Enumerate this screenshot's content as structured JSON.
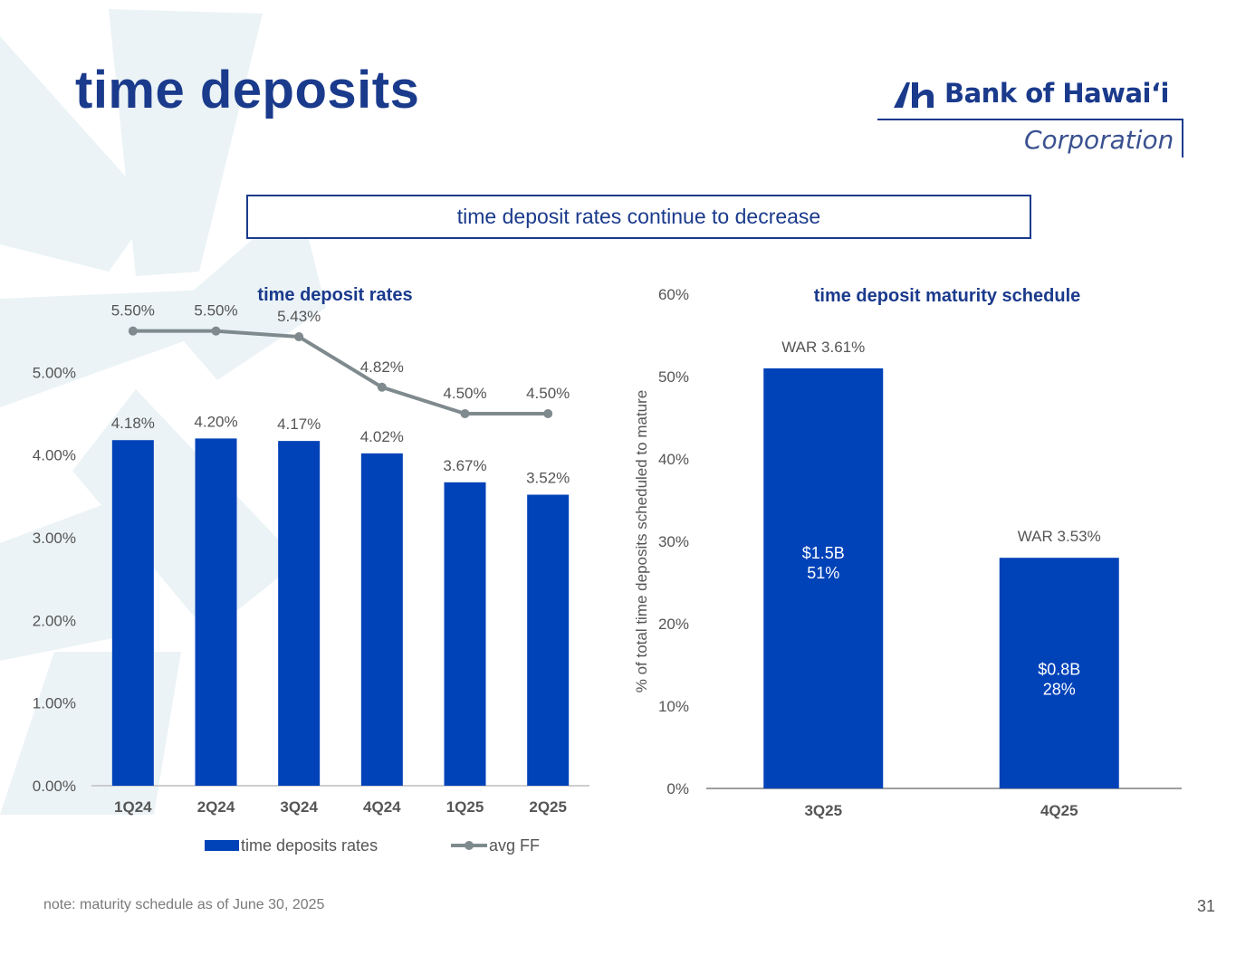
{
  "slide": {
    "title": "time deposits",
    "callout": "time deposit rates continue to decrease",
    "footnote": "note: maturity schedule as of June 30, 2025",
    "page_number": "31"
  },
  "logo": {
    "name": "Bank of Hawaiʻi",
    "subtitle": "Corporation"
  },
  "colors": {
    "bar_blue": "#0042b8",
    "title_navy": "#1a3a8c",
    "line_gray": "#7f8a8e",
    "axis_text": "#555555"
  },
  "chart_data": [
    {
      "type": "bar",
      "title": "time deposit rates",
      "categories": [
        "1Q24",
        "2Q24",
        "3Q24",
        "4Q24",
        "1Q25",
        "2Q25"
      ],
      "series": [
        {
          "name": "time deposits rates",
          "kind": "bar",
          "values": [
            4.18,
            4.2,
            4.17,
            4.02,
            3.67,
            3.52
          ],
          "labels": [
            "4.18%",
            "4.20%",
            "4.17%",
            "4.02%",
            "3.67%",
            "3.52%"
          ]
        },
        {
          "name": "avg FF",
          "kind": "line",
          "values": [
            5.5,
            5.5,
            5.43,
            4.82,
            4.5,
            4.5
          ],
          "labels": [
            "5.50%",
            "5.50%",
            "5.43%",
            "4.82%",
            "4.50%",
            "4.50%"
          ]
        }
      ],
      "yticks": [
        0,
        1,
        2,
        3,
        4,
        5
      ],
      "ytick_labels": [
        "0.00%",
        "1.00%",
        "2.00%",
        "3.00%",
        "4.00%",
        "5.00%"
      ],
      "ylim": [
        0,
        6
      ],
      "legend": "bottom"
    },
    {
      "type": "bar",
      "title": "time deposit maturity schedule",
      "ylabel": "% of total time deposits scheduled to mature",
      "categories": [
        "3Q25",
        "4Q25"
      ],
      "values": [
        51,
        28
      ],
      "bar_labels": [
        [
          "$1.5B",
          "51%"
        ],
        [
          "$0.8B",
          "28%"
        ]
      ],
      "war_labels": [
        "WAR  3.61%",
        "WAR 3.53%"
      ],
      "yticks": [
        0,
        10,
        20,
        30,
        40,
        50,
        60
      ],
      "ytick_labels": [
        "0%",
        "10%",
        "20%",
        "30%",
        "40%",
        "50%",
        "60%"
      ],
      "ylim": [
        0,
        60
      ]
    }
  ]
}
